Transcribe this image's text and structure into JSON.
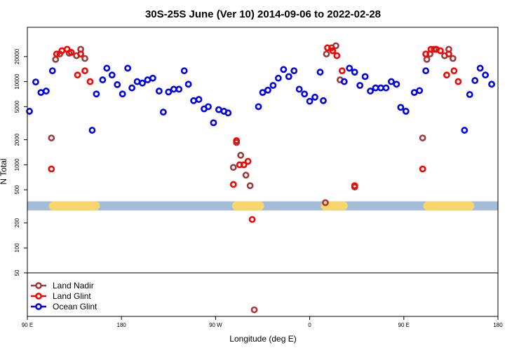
{
  "chart_data": {
    "type": "scatter",
    "title": "30S-25S June (Ver 10)   2014-09-06 to 2022-02-28",
    "xlabel": "Longitude (deg E)",
    "ylabel": "N Total",
    "x_ticks": [
      {
        "value": 90,
        "label": "90 E"
      },
      {
        "value": 180,
        "label": "180"
      },
      {
        "value": 270,
        "label": "90 W"
      },
      {
        "value": 360,
        "label": "0"
      },
      {
        "value": 450,
        "label": "90 E"
      },
      {
        "value": 540,
        "label": "180"
      }
    ],
    "y_ticks": [
      {
        "value": 50,
        "label": "50"
      },
      {
        "value": 100,
        "label": "100"
      },
      {
        "value": 200,
        "label": "200"
      },
      {
        "value": 500,
        "label": "500"
      },
      {
        "value": 1000,
        "label": "1000"
      },
      {
        "value": 2000,
        "label": "2000"
      },
      {
        "value": 5000,
        "label": "5000"
      },
      {
        "value": 10000,
        "label": "10000"
      },
      {
        "value": 20000,
        "label": "20000"
      }
    ],
    "xlim": [
      90,
      540
    ],
    "ylim": [
      15,
      45000
    ],
    "y_scale": "log",
    "legend_threshold": 50,
    "band_value": 320,
    "band_color": "#a4bcd8",
    "land_color": "#f8d66c",
    "land_segments": [
      [
        115,
        155
      ],
      [
        290,
        312
      ],
      [
        375,
        392
      ],
      [
        473,
        513
      ]
    ],
    "legend_position": "bottom-left",
    "series": [
      {
        "name": "Land Nadir",
        "color": "#a0393a",
        "points": [
          [
            113,
            2100
          ],
          [
            117,
            18500
          ],
          [
            121,
            21500
          ],
          [
            130,
            22000
          ],
          [
            137,
            20500
          ],
          [
            141,
            24500
          ],
          [
            145,
            19000
          ],
          [
            287,
            930
          ],
          [
            290,
            1850
          ],
          [
            294,
            1300
          ],
          [
            299,
            750
          ],
          [
            303,
            560
          ],
          [
            307,
            18
          ],
          [
            375,
            350
          ],
          [
            376,
            21500
          ],
          [
            381,
            25500
          ],
          [
            385,
            27000
          ],
          [
            389,
            10500
          ],
          [
            403,
            540
          ],
          [
            468,
            2100
          ],
          [
            472,
            18500
          ],
          [
            475,
            21500
          ],
          [
            479,
            24500
          ],
          [
            489,
            20500
          ],
          [
            493,
            24500
          ],
          [
            497,
            19000
          ]
        ]
      },
      {
        "name": "Land Glint",
        "color": "#ff0000",
        "points": [
          [
            113,
            890
          ],
          [
            118,
            21500
          ],
          [
            123,
            23500
          ],
          [
            128,
            24500
          ],
          [
            132,
            22500
          ],
          [
            138,
            12000
          ],
          [
            141,
            21500
          ],
          [
            145,
            13500
          ],
          [
            150,
            10000
          ],
          [
            287,
            580
          ],
          [
            290,
            1950
          ],
          [
            293,
            1000
          ],
          [
            297,
            1000
          ],
          [
            301,
            1100
          ],
          [
            305,
            220
          ],
          [
            377,
            25500
          ],
          [
            382,
            23500
          ],
          [
            386,
            20500
          ],
          [
            391,
            13500
          ],
          [
            403,
            560
          ],
          [
            468,
            890
          ],
          [
            471,
            21500
          ],
          [
            476,
            24500
          ],
          [
            481,
            24500
          ],
          [
            485,
            23500
          ],
          [
            491,
            12000
          ],
          [
            493,
            21500
          ],
          [
            498,
            13500
          ],
          [
            502,
            10000
          ]
        ]
      },
      {
        "name": "Ocean Glint",
        "color": "#0000ee",
        "points": [
          [
            92,
            4400
          ],
          [
            98,
            9900
          ],
          [
            103,
            7400
          ],
          [
            108,
            7700
          ],
          [
            114,
            13500
          ],
          [
            152,
            2600
          ],
          [
            156,
            7100
          ],
          [
            162,
            10500
          ],
          [
            166,
            14500
          ],
          [
            171,
            12000
          ],
          [
            176,
            9200
          ],
          [
            181,
            7100
          ],
          [
            186,
            14500
          ],
          [
            190,
            8400
          ],
          [
            195,
            10000
          ],
          [
            200,
            9600
          ],
          [
            205,
            10500
          ],
          [
            210,
            11000
          ],
          [
            216,
            7700
          ],
          [
            220,
            4300
          ],
          [
            225,
            7500
          ],
          [
            230,
            8100
          ],
          [
            235,
            8100
          ],
          [
            240,
            13500
          ],
          [
            244,
            9300
          ],
          [
            249,
            5900
          ],
          [
            254,
            6100
          ],
          [
            259,
            4700
          ],
          [
            263,
            5000
          ],
          [
            268,
            3200
          ],
          [
            273,
            4600
          ],
          [
            278,
            4400
          ],
          [
            282,
            4200
          ],
          [
            311,
            5000
          ],
          [
            315,
            7400
          ],
          [
            320,
            7900
          ],
          [
            325,
            9000
          ],
          [
            330,
            11000
          ],
          [
            335,
            14000
          ],
          [
            340,
            11500
          ],
          [
            345,
            13500
          ],
          [
            350,
            8100
          ],
          [
            355,
            7100
          ],
          [
            360,
            5800
          ],
          [
            365,
            6500
          ],
          [
            370,
            13000
          ],
          [
            373,
            5900
          ],
          [
            393,
            10000
          ],
          [
            398,
            14500
          ],
          [
            403,
            13000
          ],
          [
            408,
            9000
          ],
          [
            413,
            11500
          ],
          [
            418,
            7700
          ],
          [
            423,
            8400
          ],
          [
            428,
            8400
          ],
          [
            433,
            8400
          ],
          [
            438,
            10000
          ],
          [
            443,
            9300
          ],
          [
            447,
            4900
          ],
          [
            452,
            4400
          ],
          [
            460,
            7400
          ],
          [
            465,
            7800
          ],
          [
            471,
            13500
          ],
          [
            508,
            2600
          ],
          [
            513,
            7000
          ],
          [
            518,
            10300
          ],
          [
            523,
            14500
          ],
          [
            528,
            12000
          ],
          [
            534,
            9300
          ]
        ]
      }
    ]
  }
}
